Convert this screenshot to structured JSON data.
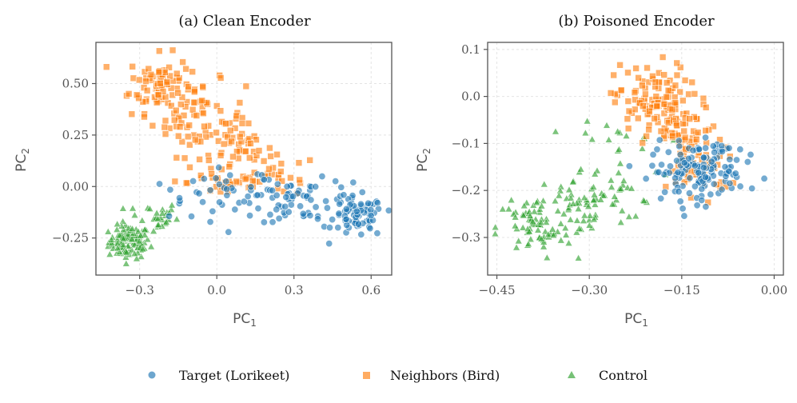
{
  "legend": [
    {
      "label": "Target (Lorikeet)",
      "color": "#1f77b4",
      "marker": "circle"
    },
    {
      "label": "Neighbors (Bird)",
      "color": "#ff7f0e",
      "marker": "square"
    },
    {
      "label": "Control",
      "color": "#2ca02c",
      "marker": "triangle"
    }
  ],
  "chart_data": [
    {
      "type": "scatter",
      "title": "(a) Clean Encoder",
      "xlabel": "PC",
      "xlabel_sub": "1",
      "ylabel": "PC",
      "ylabel_sub": "2",
      "xlim": [
        -0.47,
        0.68
      ],
      "ylim": [
        -0.43,
        0.7
      ],
      "xticks": [
        -0.3,
        0.0,
        0.3,
        0.6
      ],
      "xtick_labels": [
        "−0.3",
        "0.0",
        "0.3",
        "0.6"
      ],
      "yticks": [
        -0.25,
        0.0,
        0.25,
        0.5
      ],
      "ytick_labels": [
        "−0.25",
        "0.00",
        "0.25",
        "0.50"
      ],
      "grid": true,
      "series": [
        {
          "name": "Target (Lorikeet)",
          "clusters": [
            {
              "cx": 0.55,
              "cy": -0.15,
              "sx": 0.05,
              "sy": 0.05,
              "n": 70
            },
            {
              "cx": 0.35,
              "cy": -0.07,
              "sx": 0.1,
              "sy": 0.05,
              "n": 50
            },
            {
              "cx": 0.12,
              "cy": -0.02,
              "sx": 0.13,
              "sy": 0.05,
              "n": 40
            },
            {
              "cx": -0.08,
              "cy": -0.06,
              "sx": 0.09,
              "sy": 0.05,
              "n": 15
            }
          ]
        },
        {
          "name": "Neighbors (Bird)",
          "clusters": [
            {
              "cx": -0.22,
              "cy": 0.5,
              "sx": 0.06,
              "sy": 0.07,
              "n": 85
            },
            {
              "cx": -0.07,
              "cy": 0.33,
              "sx": 0.09,
              "sy": 0.09,
              "n": 70
            },
            {
              "cx": 0.08,
              "cy": 0.17,
              "sx": 0.07,
              "sy": 0.07,
              "n": 50
            },
            {
              "cx": 0.05,
              "cy": 0.02,
              "sx": 0.08,
              "sy": 0.04,
              "n": 25
            },
            {
              "cx": 0.25,
              "cy": 0.05,
              "sx": 0.07,
              "sy": 0.05,
              "n": 20
            }
          ]
        },
        {
          "name": "Control",
          "clusters": [
            {
              "cx": -0.34,
              "cy": -0.27,
              "sx": 0.04,
              "sy": 0.04,
              "n": 110
            },
            {
              "cx": -0.25,
              "cy": -0.15,
              "sx": 0.05,
              "sy": 0.04,
              "n": 30
            }
          ]
        }
      ]
    },
    {
      "type": "scatter",
      "title": "(b) Poisoned Encoder",
      "xlabel": "PC",
      "xlabel_sub": "1",
      "ylabel": "PC",
      "ylabel_sub": "2",
      "xlim": [
        -0.465,
        0.015
      ],
      "ylim": [
        -0.38,
        0.115
      ],
      "xticks": [
        -0.45,
        -0.3,
        -0.15,
        0.0
      ],
      "xtick_labels": [
        "−0.45",
        "−0.30",
        "−0.15",
        "0.00"
      ],
      "yticks": [
        -0.3,
        -0.2,
        -0.1,
        0.0,
        0.1
      ],
      "ytick_labels": [
        "−0.3",
        "−0.2",
        "−0.1",
        "0.0",
        "0.1"
      ],
      "grid": true,
      "series": [
        {
          "name": "Target (Lorikeet)",
          "clusters": [
            {
              "cx": -0.13,
              "cy": -0.16,
              "sx": 0.035,
              "sy": 0.03,
              "n": 110
            },
            {
              "cx": -0.07,
              "cy": -0.15,
              "sx": 0.03,
              "sy": 0.03,
              "n": 30
            }
          ]
        },
        {
          "name": "Neighbors (Bird)",
          "clusters": [
            {
              "cx": -0.2,
              "cy": -0.01,
              "sx": 0.03,
              "sy": 0.04,
              "n": 110
            },
            {
              "cx": -0.14,
              "cy": -0.09,
              "sx": 0.03,
              "sy": 0.04,
              "n": 60
            },
            {
              "cx": -0.12,
              "cy": -0.16,
              "sx": 0.025,
              "sy": 0.025,
              "n": 35
            }
          ]
        },
        {
          "name": "Control",
          "clusters": [
            {
              "cx": -0.39,
              "cy": -0.28,
              "sx": 0.03,
              "sy": 0.035,
              "n": 70
            },
            {
              "cx": -0.31,
              "cy": -0.23,
              "sx": 0.04,
              "sy": 0.04,
              "n": 60
            },
            {
              "cx": -0.25,
              "cy": -0.14,
              "sx": 0.04,
              "sy": 0.06,
              "n": 40
            }
          ]
        }
      ]
    }
  ]
}
